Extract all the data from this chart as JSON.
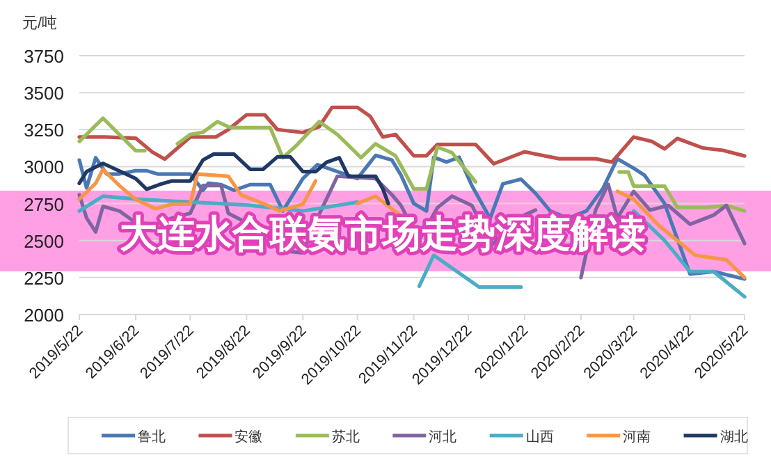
{
  "chart_data": {
    "type": "line",
    "title": "大连水合联氨市场走势深度解读",
    "ylabel": "元/吨",
    "xlim": [
      "2019-05-22",
      "2020-05-22"
    ],
    "xticks": [
      {
        "value": "2019-05-22",
        "label": "2019/5/22"
      },
      {
        "value": "2019-06-22",
        "label": "2019/6/22"
      },
      {
        "value": "2019-07-22",
        "label": "2019/7/22"
      },
      {
        "value": "2019-08-22",
        "label": "2019/8/22"
      },
      {
        "value": "2019-09-22",
        "label": "2019/9/22"
      },
      {
        "value": "2019-10-22",
        "label": "2019/10/22"
      },
      {
        "value": "2019-11-22",
        "label": "2019/11/22"
      },
      {
        "value": "2019-12-22",
        "label": "2019/12/22"
      },
      {
        "value": "2020-01-22",
        "label": "2020/1/22"
      },
      {
        "value": "2020-02-22",
        "label": "2020/2/22"
      },
      {
        "value": "2020-03-22",
        "label": "2020/3/22"
      },
      {
        "value": "2020-04-22",
        "label": "2020/4/22"
      },
      {
        "value": "2020-05-22",
        "label": "2020/5/22"
      }
    ],
    "ylim": [
      2000,
      3750
    ],
    "yticks": [
      2000,
      2250,
      2500,
      2750,
      3000,
      3250,
      3500,
      3750
    ],
    "grid": "y",
    "legend": "bottom",
    "line_style": "solid",
    "marker": "none",
    "series": [
      {
        "name": "鲁北",
        "color": "#4a78b5",
        "x": [
          "2019-05-22",
          "2019-05-26",
          "2019-05-31",
          "2019-06-06",
          "2019-06-13",
          "2019-06-22",
          "2019-06-28",
          "2019-07-04",
          "2019-07-22",
          "2019-07-29",
          "2019-08-01",
          "2019-08-08",
          "2019-08-15",
          "2019-08-24",
          "2019-09-04",
          "2019-09-11",
          "2019-09-22",
          "2019-09-30",
          "2019-10-11",
          "2019-10-22",
          "2019-11-01",
          "2019-11-10",
          "2019-11-15",
          "2019-11-22",
          "2019-11-29",
          "2019-12-03",
          "2019-12-10",
          "2019-12-17",
          "2019-12-24",
          "2020-01-03",
          "2020-01-10",
          "2020-01-20",
          "2020-01-28",
          "2020-02-05",
          "2020-02-15",
          "2020-02-25",
          "2020-03-05",
          "2020-03-13",
          "2020-03-22",
          "2020-03-28",
          "2020-04-08",
          "2020-04-22",
          "2020-05-05",
          "2020-05-22"
        ],
        "values": [
          3044,
          2856,
          3060,
          2950,
          2950,
          2972,
          2972,
          2950,
          2950,
          2840,
          2887,
          2878,
          2840,
          2878,
          2878,
          2700,
          2919,
          3013,
          2966,
          2919,
          3076,
          3044,
          2942,
          2750,
          2700,
          3063,
          3031,
          3063,
          2870,
          2650,
          2883,
          2915,
          2819,
          2700,
          2650,
          2700,
          2850,
          3053,
          2989,
          2941,
          2750,
          2273,
          2290,
          2240
        ]
      },
      {
        "name": "安徽",
        "color": "#c0504d",
        "x": [
          "2019-05-22",
          "2019-06-05",
          "2019-06-22",
          "2019-07-01",
          "2019-07-08",
          "2019-07-22",
          "2019-08-05",
          "2019-08-12",
          "2019-08-22",
          "2019-09-01",
          "2019-09-08",
          "2019-09-22",
          "2019-10-01",
          "2019-10-08",
          "2019-10-22",
          "2019-10-29",
          "2019-11-05",
          "2019-11-12",
          "2019-11-22",
          "2019-11-29",
          "2019-12-05",
          "2019-12-26",
          "2020-01-05",
          "2020-01-22",
          "2020-02-10",
          "2020-03-01",
          "2020-03-10",
          "2020-03-22",
          "2020-04-01",
          "2020-04-08",
          "2020-04-15",
          "2020-04-29",
          "2020-05-10",
          "2020-05-22"
        ],
        "values": [
          3200,
          3200,
          3192,
          3100,
          3050,
          3200,
          3200,
          3250,
          3350,
          3350,
          3250,
          3230,
          3270,
          3400,
          3400,
          3340,
          3200,
          3217,
          3073,
          3073,
          3150,
          3150,
          3019,
          3100,
          3053,
          3053,
          3030,
          3200,
          3170,
          3120,
          3190,
          3126,
          3110,
          3072
        ]
      },
      {
        "name": "苏北",
        "color": "#9bbb59",
        "x": [
          "2019-05-22",
          "2019-06-04",
          "2019-06-22",
          "2019-06-27",
          "2019-07-05",
          "2019-07-15",
          "2019-07-22",
          "2019-07-29",
          "2019-08-06",
          "2019-08-13",
          "2019-09-04",
          "2019-09-11",
          "2019-09-18",
          "2019-10-01",
          "2019-10-11",
          "2019-10-24",
          "2019-11-01",
          "2019-11-12",
          "2019-11-22",
          "2019-11-29",
          "2019-12-05",
          "2019-12-13",
          "2019-12-26",
          "2020-02-01",
          "2020-03-14",
          "2020-03-19",
          "2020-03-22",
          "2020-04-08",
          "2020-04-15",
          "2020-05-01",
          "2020-05-12",
          "2020-05-22"
        ],
        "values": [
          3170,
          3327,
          3107,
          3107,
          null,
          3154,
          3217,
          3232,
          3304,
          3264,
          3264,
          3060,
          3138,
          3304,
          3217,
          3060,
          3154,
          3073,
          2849,
          2849,
          3132,
          3094,
          2897,
          null,
          2964,
          2964,
          2868,
          2868,
          2724,
          2724,
          2737,
          2700
        ]
      },
      {
        "name": "河北",
        "color": "#8064a2",
        "x": [
          "2019-05-22",
          "2019-05-26",
          "2019-05-31",
          "2019-06-04",
          "2019-06-13",
          "2019-06-22",
          "2019-07-03",
          "2019-07-12",
          "2019-07-22",
          "2019-07-29",
          "2019-08-08",
          "2019-08-12",
          "2019-08-22",
          "2019-09-01",
          "2019-09-09",
          "2019-09-22",
          "2019-09-30",
          "2019-10-11",
          "2019-11-01",
          "2019-11-10",
          "2019-11-15",
          "2019-11-25",
          "2019-12-05",
          "2019-12-13",
          "2019-12-24",
          "2020-01-04",
          "2020-01-18",
          "2020-01-28",
          "2020-02-10",
          "2020-02-22",
          "2020-03-01",
          "2020-03-08",
          "2020-03-13",
          "2020-03-22",
          "2020-03-31",
          "2020-04-10",
          "2020-04-22",
          "2020-05-05",
          "2020-05-12",
          "2020-05-22"
        ],
        "values": [
          2809,
          2652,
          2558,
          2731,
          2700,
          2621,
          2610,
          2652,
          2684,
          2872,
          2872,
          2684,
          2621,
          2558,
          2433,
          2417,
          2652,
          2935,
          2919,
          2809,
          2737,
          2503,
          2722,
          2800,
          2737,
          2470,
          2650,
          2706,
          null,
          2250,
          2706,
          2880,
          2652,
          2832,
          2706,
          2737,
          2610,
          2672,
          2737,
          2480
        ]
      },
      {
        "name": "山西",
        "color": "#4bacc6",
        "x": [
          "2019-05-22",
          "2019-06-04",
          "2019-06-22",
          "2019-07-22",
          "2019-08-22",
          "2019-09-22",
          "2019-10-22",
          "2019-11-10",
          "2019-11-25",
          "2019-12-03",
          "2019-12-28",
          "2020-01-20",
          "2020-02-01",
          "2020-03-22",
          "2020-04-08",
          "2020-04-22",
          "2020-05-05",
          "2020-05-22"
        ],
        "values": [
          2700,
          2800,
          2780,
          2760,
          2740,
          2700,
          2760,
          null,
          2191,
          2400,
          2185,
          2185,
          null,
          2700,
          2500,
          2290,
          2290,
          2120
        ]
      },
      {
        "name": "河南",
        "color": "#f79646",
        "x": [
          "2019-05-22",
          "2019-05-31",
          "2019-06-04",
          "2019-06-13",
          "2019-06-22",
          "2019-07-03",
          "2019-07-12",
          "2019-07-22",
          "2019-07-26",
          "2019-08-12",
          "2019-08-19",
          "2019-09-01",
          "2019-09-09",
          "2019-09-22",
          "2019-09-29",
          "2019-10-15",
          "2019-10-22",
          "2019-11-01",
          "2019-11-22",
          "2019-12-22",
          "2020-03-13",
          "2020-03-22",
          "2020-04-05",
          "2020-04-25",
          "2020-05-12",
          "2020-05-22"
        ],
        "values": [
          2780,
          2887,
          2981,
          2872,
          2778,
          2715,
          2746,
          2746,
          2950,
          2934,
          2809,
          2746,
          2700,
          2746,
          2903,
          null,
          2750,
          2800,
          2600,
          null,
          2833,
          2780,
          2600,
          2400,
          2370,
          2250
        ]
      },
      {
        "name": "湖北",
        "color": "#1f3864",
        "x": [
          "2019-05-22",
          "2019-05-26",
          "2019-06-04",
          "2019-06-22",
          "2019-06-28",
          "2019-07-05",
          "2019-07-12",
          "2019-07-22",
          "2019-07-29",
          "2019-08-04",
          "2019-08-15",
          "2019-08-24",
          "2019-08-31",
          "2019-09-08",
          "2019-09-15",
          "2019-09-22",
          "2019-09-29",
          "2019-10-05",
          "2019-10-12",
          "2019-10-17",
          "2019-11-01",
          "2019-11-05",
          "2019-11-08"
        ],
        "values": [
          2887,
          2966,
          3022,
          2919,
          2847,
          2878,
          2903,
          2903,
          3044,
          3085,
          3085,
          2981,
          2981,
          3066,
          3066,
          2966,
          2966,
          3029,
          3060,
          2935,
          2935,
          2849,
          2750
        ]
      }
    ]
  }
}
